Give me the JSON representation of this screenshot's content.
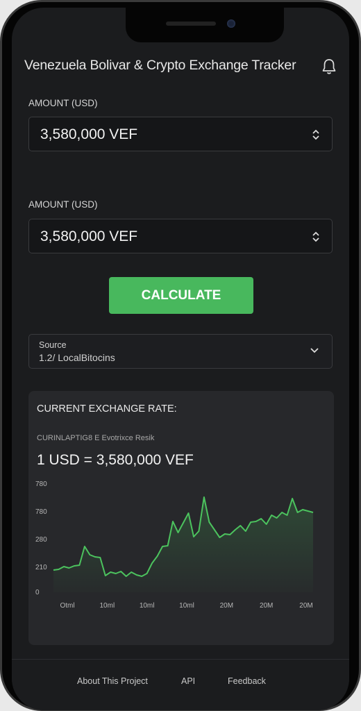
{
  "app": {
    "title": "Venezuela Bolivar & Crypto Exchange Tracker",
    "notification_icon": "bell-icon"
  },
  "form": {
    "amount1": {
      "label": "AMOUNT (USD)",
      "value": "3,580,000 VEF"
    },
    "amount2": {
      "label": "AMOUNT (USD)",
      "value": "3,580,000 VEF"
    },
    "calculate_label": "CALCULATE",
    "source": {
      "label": "Source",
      "value": "1.2/  LocalBitocins"
    }
  },
  "rate": {
    "heading": "CURRENT EXCHANGE RATE:",
    "subheading": "CURINLAPTIG8 E Evotrixce Resik",
    "value": "1 USD = 3,580,000 VEF"
  },
  "chart_data": {
    "type": "area",
    "y_tick_labels": [
      "780",
      "780",
      "280",
      "210",
      "0"
    ],
    "x_tick_labels": [
      "Otml",
      "10ml",
      "10ml",
      "10ml",
      "20M",
      "20M",
      "20M"
    ],
    "ylim": [
      0,
      800
    ],
    "grid": false,
    "line_color": "#4cc35e",
    "series": [
      {
        "x": [
          0,
          2,
          4,
          6,
          8,
          10,
          12,
          14,
          16,
          18,
          20,
          22,
          24,
          26,
          28,
          30,
          32,
          34,
          36,
          38,
          40,
          42,
          44,
          46,
          48,
          50,
          52,
          54,
          56,
          58,
          60,
          62,
          64,
          66,
          68,
          70,
          72,
          74,
          76,
          78,
          80,
          82,
          84,
          86,
          88,
          90,
          92,
          94,
          96,
          98,
          100
        ],
        "values": [
          160,
          165,
          185,
          175,
          190,
          195,
          330,
          270,
          255,
          250,
          120,
          145,
          135,
          150,
          115,
          145,
          125,
          115,
          135,
          210,
          260,
          330,
          335,
          510,
          430,
          500,
          570,
          400,
          440,
          685,
          505,
          450,
          395,
          420,
          415,
          450,
          480,
          440,
          505,
          510,
          530,
          490,
          555,
          535,
          575,
          555,
          675,
          575,
          595,
          585,
          575
        ]
      }
    ]
  },
  "footer": {
    "about": "About This Project",
    "api": "API",
    "feedback": "Feedback"
  }
}
